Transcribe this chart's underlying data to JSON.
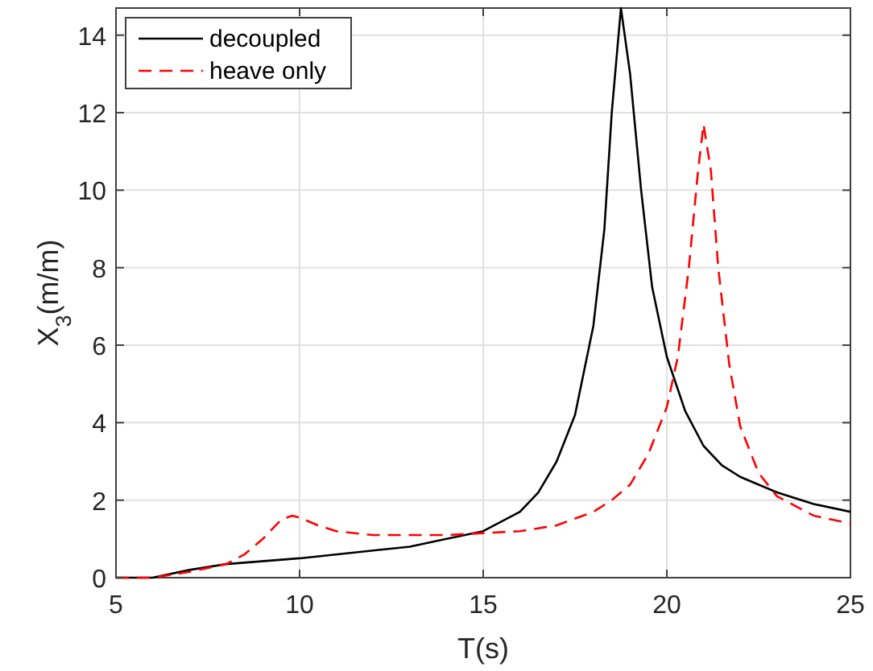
{
  "chart_data": {
    "type": "line",
    "xlabel": "T(s)",
    "ylabel": "X$_{3}$(m/m)",
    "xlim": [
      5,
      25
    ],
    "ylim": [
      0,
      14.7
    ],
    "xticks": [
      5,
      10,
      15,
      20,
      25
    ],
    "yticks": [
      0,
      2,
      4,
      6,
      8,
      10,
      12,
      14
    ],
    "grid": true,
    "legend": "top left",
    "series": [
      {
        "name": "decoupled",
        "color": "#000000",
        "line_style": "solid",
        "x": [
          5,
          6,
          7,
          8,
          10,
          12,
          13,
          14,
          15,
          16,
          16.5,
          17,
          17.5,
          18,
          18.3,
          18.5,
          18.75,
          19,
          19.3,
          19.6,
          20,
          20.5,
          21,
          21.5,
          22,
          23,
          24,
          25
        ],
        "values": [
          0,
          0,
          0.2,
          0.35,
          0.5,
          0.7,
          0.8,
          1.0,
          1.2,
          1.7,
          2.2,
          3,
          4.2,
          6.5,
          9,
          12,
          14.7,
          13,
          10,
          7.5,
          5.7,
          4.3,
          3.4,
          2.9,
          2.6,
          2.2,
          1.9,
          1.7
        ]
      },
      {
        "name": "heave only",
        "color": "#ff0000",
        "line_style": "dashed",
        "x": [
          5,
          6,
          7,
          8,
          8.5,
          9,
          9.5,
          9.8,
          10,
          10.5,
          11,
          12,
          13,
          14,
          15,
          16,
          17,
          18,
          18.5,
          19,
          19.5,
          20,
          20.3,
          20.6,
          20.85,
          21,
          21.2,
          21.4,
          21.7,
          22,
          22.5,
          23,
          24,
          25
        ],
        "values": [
          0,
          0,
          0.15,
          0.35,
          0.6,
          1.0,
          1.5,
          1.6,
          1.55,
          1.35,
          1.2,
          1.1,
          1.1,
          1.1,
          1.15,
          1.2,
          1.35,
          1.7,
          2.0,
          2.4,
          3.2,
          4.4,
          5.7,
          8,
          10.5,
          11.7,
          10.5,
          8,
          5.5,
          3.9,
          2.7,
          2.1,
          1.6,
          1.4
        ]
      }
    ]
  }
}
